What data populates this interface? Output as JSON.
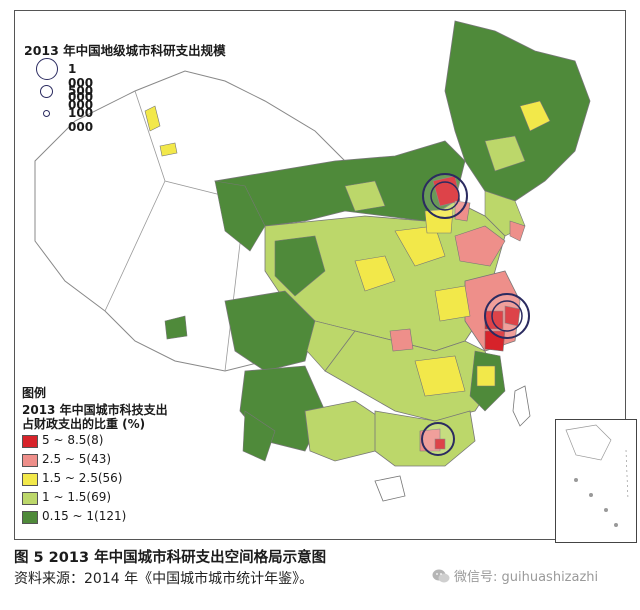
{
  "map": {
    "title": "2013 年中国地级城市科研支出规模",
    "size_legend": [
      {
        "label": "1 000 000",
        "value": 1000000
      },
      {
        "label": "500 000",
        "value": 500000
      },
      {
        "label": "100 000",
        "value": 100000
      }
    ],
    "legend": {
      "heading": "图例",
      "subtitle_line1": "2013 年中国城市科技支出",
      "subtitle_line2": "占财政支出的比重 (%)",
      "classes": [
        {
          "label": "5 ~ 8.5(8)",
          "color": "#d7232a"
        },
        {
          "label": "2.5 ~ 5(43)",
          "color": "#ee8f8a"
        },
        {
          "label": "1.5 ~ 2.5(56)",
          "color": "#f2e84a"
        },
        {
          "label": "1 ~ 1.5(69)",
          "color": "#bcd76a"
        },
        {
          "label": "0.15 ~ 1(121)",
          "color": "#4f8a3a"
        }
      ]
    },
    "colors": {
      "boundary": "#777777",
      "no_data": "#ffffff",
      "circle_stroke": "#2b2b60"
    }
  },
  "caption": {
    "figure": "图 5  2013 年中国城市科研支出空间格局示意图",
    "source": "资料来源：2014 年《中国城市城市统计年鉴》。",
    "watermark": "微信号: guihuashizazhi"
  }
}
